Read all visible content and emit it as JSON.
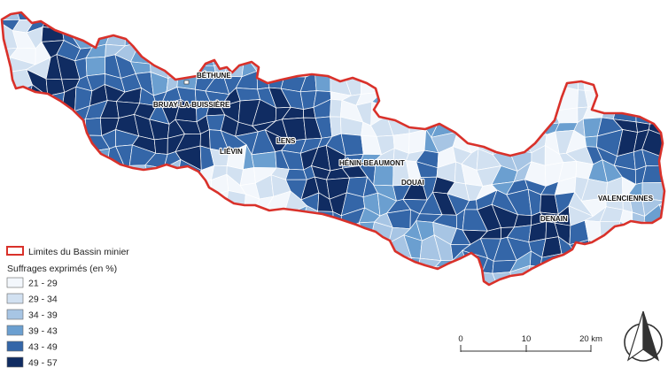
{
  "legend": {
    "boundary_label": "Limites du Bassin minier",
    "boundary_color": "#d9312a",
    "title": "Suffrages exprimés (en %)",
    "classes": [
      {
        "label": "21 - 29",
        "color": "#f3f7fc"
      },
      {
        "label": "29 - 34",
        "color": "#d2e1f1"
      },
      {
        "label": "34 - 39",
        "color": "#a7c5e4"
      },
      {
        "label": "39 - 43",
        "color": "#6b9fd0"
      },
      {
        "label": "43 - 49",
        "color": "#3466a8"
      },
      {
        "label": "49 - 57",
        "color": "#102c62"
      }
    ]
  },
  "cities": [
    {
      "name": "BÉTHUNE"
    },
    {
      "name": "BRUAY-LA-BUISSIÈRE"
    },
    {
      "name": "LENS"
    },
    {
      "name": "LIÉVIN"
    },
    {
      "name": "HÉNIN-BEAUMONT"
    },
    {
      "name": "DOUAI"
    },
    {
      "name": "VALENCIENNES"
    },
    {
      "name": "DENAIN"
    }
  ],
  "scale_bar": {
    "labels": [
      "0",
      "10",
      "20 km"
    ]
  },
  "north_arrow": {
    "icon": "north-arrow-icon"
  }
}
